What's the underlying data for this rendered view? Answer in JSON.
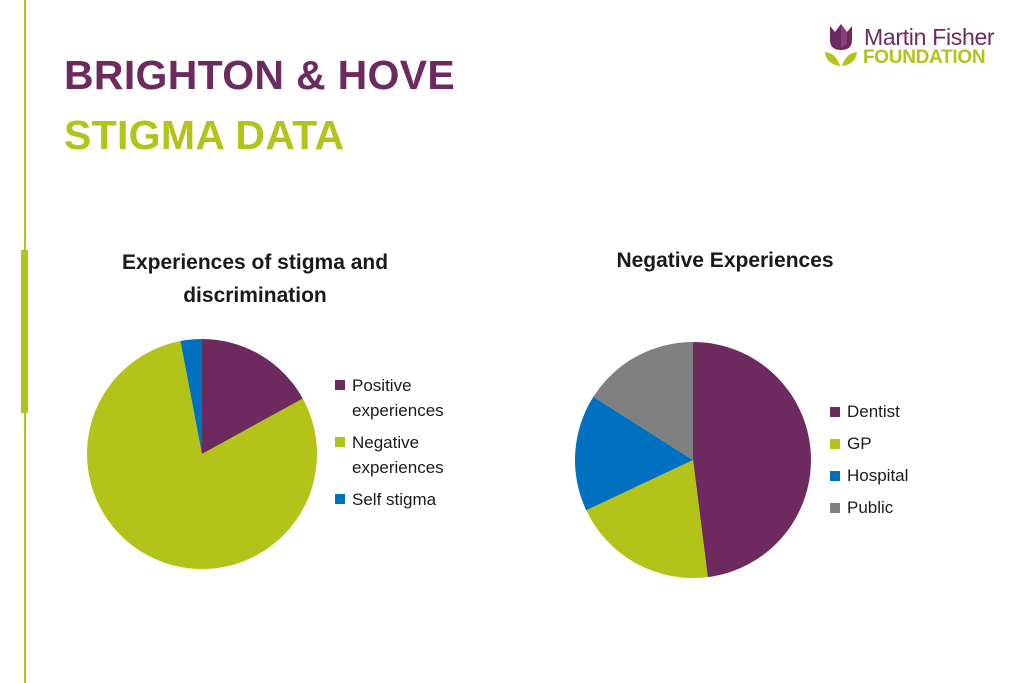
{
  "slide": {
    "title_line1": "BRIGHTON & HOVE",
    "title_line2": "STIGMA DATA"
  },
  "logo": {
    "line1": "Martin Fisher",
    "line2": "FOUNDATION",
    "icon": "tulip-leaf-icon"
  },
  "colors": {
    "purple": "#6d2a5f",
    "green": "#b3c31a",
    "blue": "#0070c0",
    "grey": "#808080"
  },
  "chart_data": [
    {
      "type": "pie",
      "title": "Experiences of stigma and discrimination",
      "labels": [
        "Positive experiences",
        "Negative experiences",
        "Self stigma"
      ],
      "values": [
        17,
        80,
        3
      ],
      "colors": [
        "#6d2a5f",
        "#b3c31a",
        "#0070c0"
      ],
      "legend_position": "right"
    },
    {
      "type": "pie",
      "title": "Negative Experiences",
      "labels": [
        "Dentist",
        "GP",
        "Hospital",
        "Public"
      ],
      "values": [
        48,
        20,
        16,
        16
      ],
      "colors": [
        "#6d2a5f",
        "#b3c31a",
        "#0070c0",
        "#808080"
      ],
      "legend_position": "right"
    }
  ]
}
